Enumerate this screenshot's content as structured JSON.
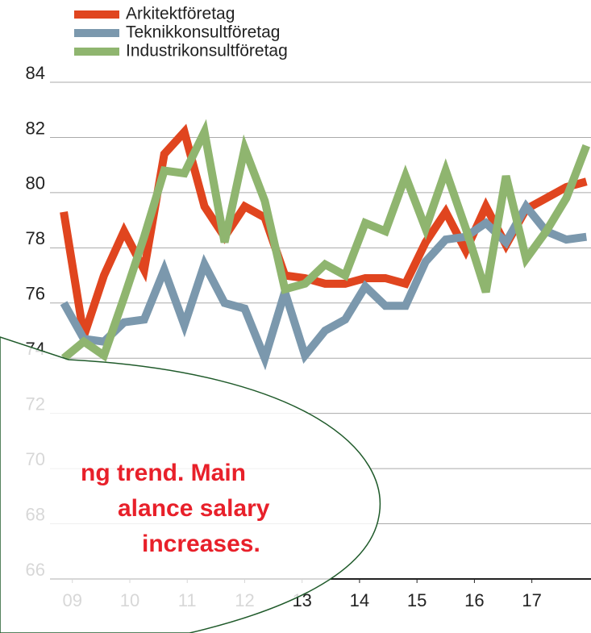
{
  "chart_data": {
    "type": "line",
    "x": [
      2008.85,
      2009.2,
      2009.55,
      2009.9,
      2010.25,
      2010.6,
      2010.95,
      2011.3,
      2011.65,
      2012.0,
      2012.35,
      2012.7,
      2013.05,
      2013.4,
      2013.75,
      2014.1,
      2014.45,
      2014.8,
      2015.15,
      2015.5,
      2015.85,
      2016.2,
      2016.55,
      2016.9,
      2017.25,
      2017.6,
      2017.95
    ],
    "series": [
      {
        "name": "Arkitektföretag",
        "color": "#e0451f",
        "values": [
          79.3,
          74.8,
          77.0,
          78.6,
          77.2,
          81.4,
          82.2,
          79.5,
          78.4,
          79.5,
          79.1,
          77.0,
          76.9,
          76.7,
          76.7,
          76.9,
          76.9,
          76.7,
          78.2,
          79.3,
          77.9,
          79.5,
          78.1,
          79.4,
          79.8,
          80.2,
          80.4
        ]
      },
      {
        "name": "Teknikkonsultföretag",
        "color": "#7b98ad",
        "values": [
          76.0,
          74.7,
          74.6,
          75.3,
          75.4,
          77.2,
          75.2,
          77.4,
          76.0,
          75.8,
          74.0,
          76.4,
          74.1,
          75.0,
          75.4,
          76.6,
          75.9,
          75.9,
          77.5,
          78.3,
          78.4,
          78.9,
          78.2,
          79.5,
          78.6,
          78.3,
          78.4
        ]
      },
      {
        "name": "Industrikonsultföretag",
        "color": "#8fb56f",
        "values": [
          74.0,
          74.6,
          74.1,
          76.2,
          78.4,
          80.8,
          80.7,
          82.2,
          78.2,
          81.6,
          79.7,
          76.5,
          76.7,
          77.4,
          77.0,
          78.9,
          78.6,
          80.6,
          78.7,
          80.8,
          78.7,
          76.4,
          80.6,
          77.6,
          78.6,
          79.8,
          81.7
        ]
      }
    ],
    "xlim": [
      2007.74,
      2018.03
    ],
    "xticks": [
      {
        "value": 2009,
        "label": "09"
      },
      {
        "value": 2010,
        "label": "10"
      },
      {
        "value": 2011,
        "label": "11"
      },
      {
        "value": 2012,
        "label": "12"
      },
      {
        "value": 2013,
        "label": "13"
      },
      {
        "value": 2014,
        "label": "14"
      },
      {
        "value": 2015,
        "label": "15"
      },
      {
        "value": 2016,
        "label": "16"
      },
      {
        "value": 2017,
        "label": "17"
      }
    ],
    "ylim": [
      66,
      84
    ],
    "yticks": [
      66,
      68,
      70,
      72,
      74,
      76,
      78,
      80,
      82,
      84
    ],
    "grid": true,
    "legend": "top",
    "annotation_lines": [
      "ng trend. Main",
      "alance salary",
      "increases."
    ]
  }
}
